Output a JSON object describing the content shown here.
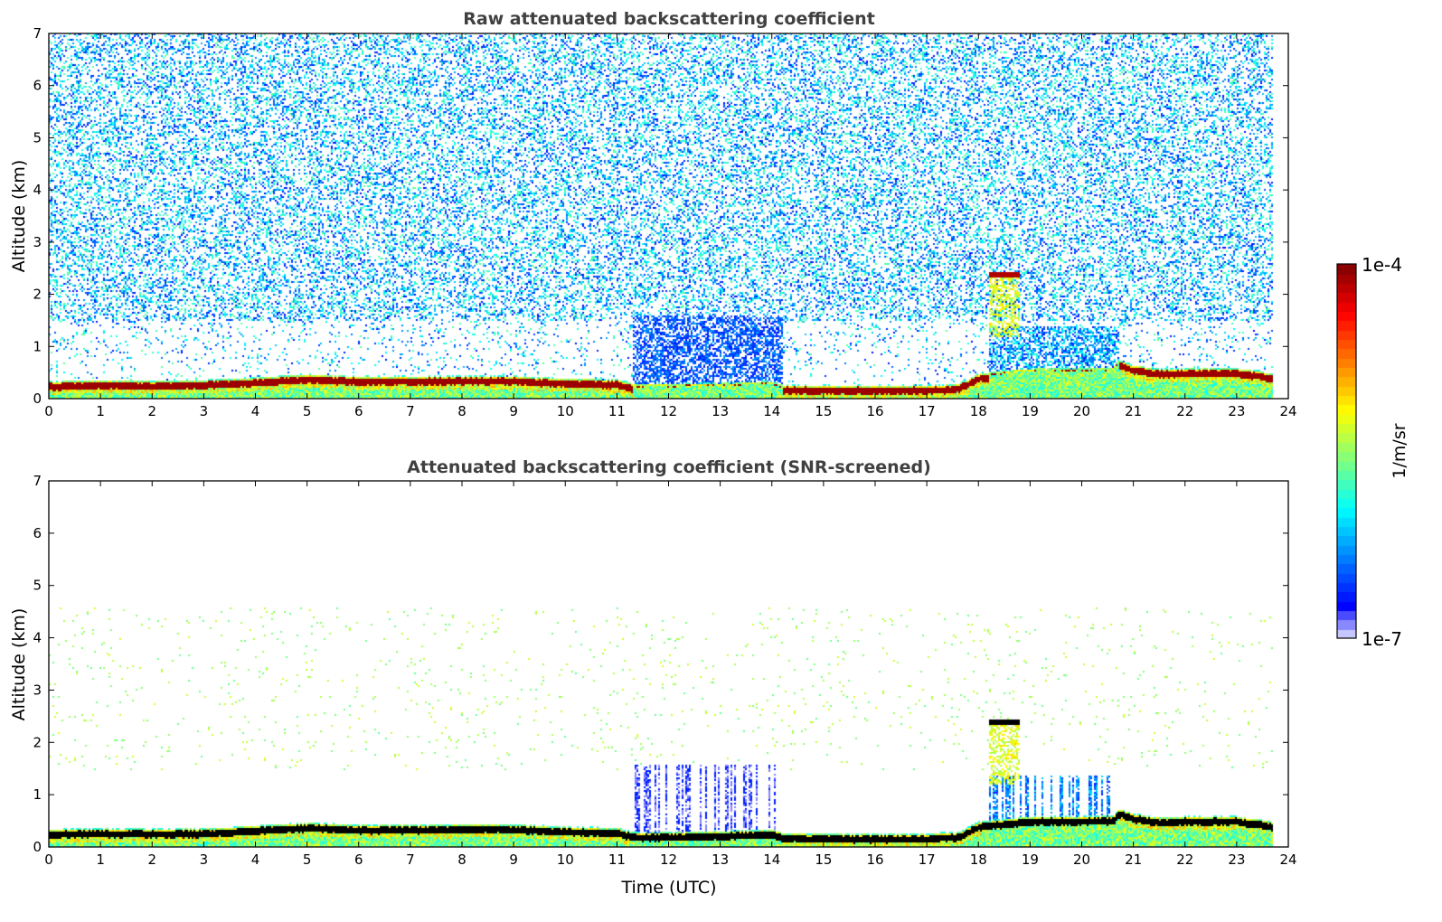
{
  "chart_data": [
    {
      "type": "heatmap",
      "title": "Raw attenuated backscattering coefficient",
      "xlabel": "",
      "ylabel": "Altitude (km)",
      "xlim": [
        0,
        24
      ],
      "ylim": [
        0,
        7
      ],
      "xticks": [
        "0",
        "1",
        "2",
        "3",
        "4",
        "5",
        "6",
        "7",
        "8",
        "9",
        "10",
        "11",
        "12",
        "13",
        "14",
        "15",
        "16",
        "17",
        "18",
        "19",
        "20",
        "21",
        "22",
        "23",
        "24"
      ],
      "yticks": [
        "0",
        "1",
        "2",
        "3",
        "4",
        "5",
        "6",
        "7"
      ],
      "screened": false
    },
    {
      "type": "heatmap",
      "title": "Attenuated backscattering coefficient (SNR-screened)",
      "xlabel": "Time (UTC)",
      "ylabel": "Altitude (km)",
      "xlim": [
        0,
        24
      ],
      "ylim": [
        0,
        7
      ],
      "xticks": [
        "0",
        "1",
        "2",
        "3",
        "4",
        "5",
        "6",
        "7",
        "8",
        "9",
        "10",
        "11",
        "12",
        "13",
        "14",
        "15",
        "16",
        "17",
        "18",
        "19",
        "20",
        "21",
        "22",
        "23",
        "24"
      ],
      "yticks": [
        "0",
        "1",
        "2",
        "3",
        "4",
        "5",
        "6",
        "7"
      ],
      "screened": true
    }
  ],
  "data_end_hour": 23.7,
  "boundary_layer_top_km": {
    "hours": [
      0,
      1,
      2,
      3,
      4,
      5,
      6,
      7,
      8,
      9,
      10,
      11,
      11.3,
      12,
      13,
      14,
      14.2,
      15,
      16,
      17,
      17.6,
      18,
      19,
      20,
      20.6,
      20.7,
      21,
      21.5,
      22,
      23,
      23.7
    ],
    "values": [
      0.35,
      0.37,
      0.36,
      0.37,
      0.42,
      0.48,
      0.44,
      0.44,
      0.45,
      0.45,
      0.4,
      0.38,
      0.3,
      0.3,
      0.32,
      0.35,
      0.28,
      0.27,
      0.27,
      0.27,
      0.3,
      0.5,
      0.6,
      0.6,
      0.62,
      0.75,
      0.65,
      0.58,
      0.6,
      0.6,
      0.5
    ]
  },
  "features": [
    {
      "name": "elevated cloud",
      "start_hour": 18.2,
      "end_hour": 18.8,
      "altitude_km": 2.4
    },
    {
      "name": "enhanced noise region",
      "start_hour": 11.3,
      "end_hour": 14.2,
      "max_altitude_km": 1.6
    },
    {
      "name": "enhanced noise region",
      "start_hour": 18.2,
      "end_hour": 20.7,
      "max_altitude_km": 1.4
    }
  ],
  "colorbar": {
    "label": "1/m/sr",
    "min_label": "1e-7",
    "max_label": "1e-4",
    "min": 1e-07,
    "max": 0.0001,
    "scale": "log",
    "colormap": "jet"
  }
}
